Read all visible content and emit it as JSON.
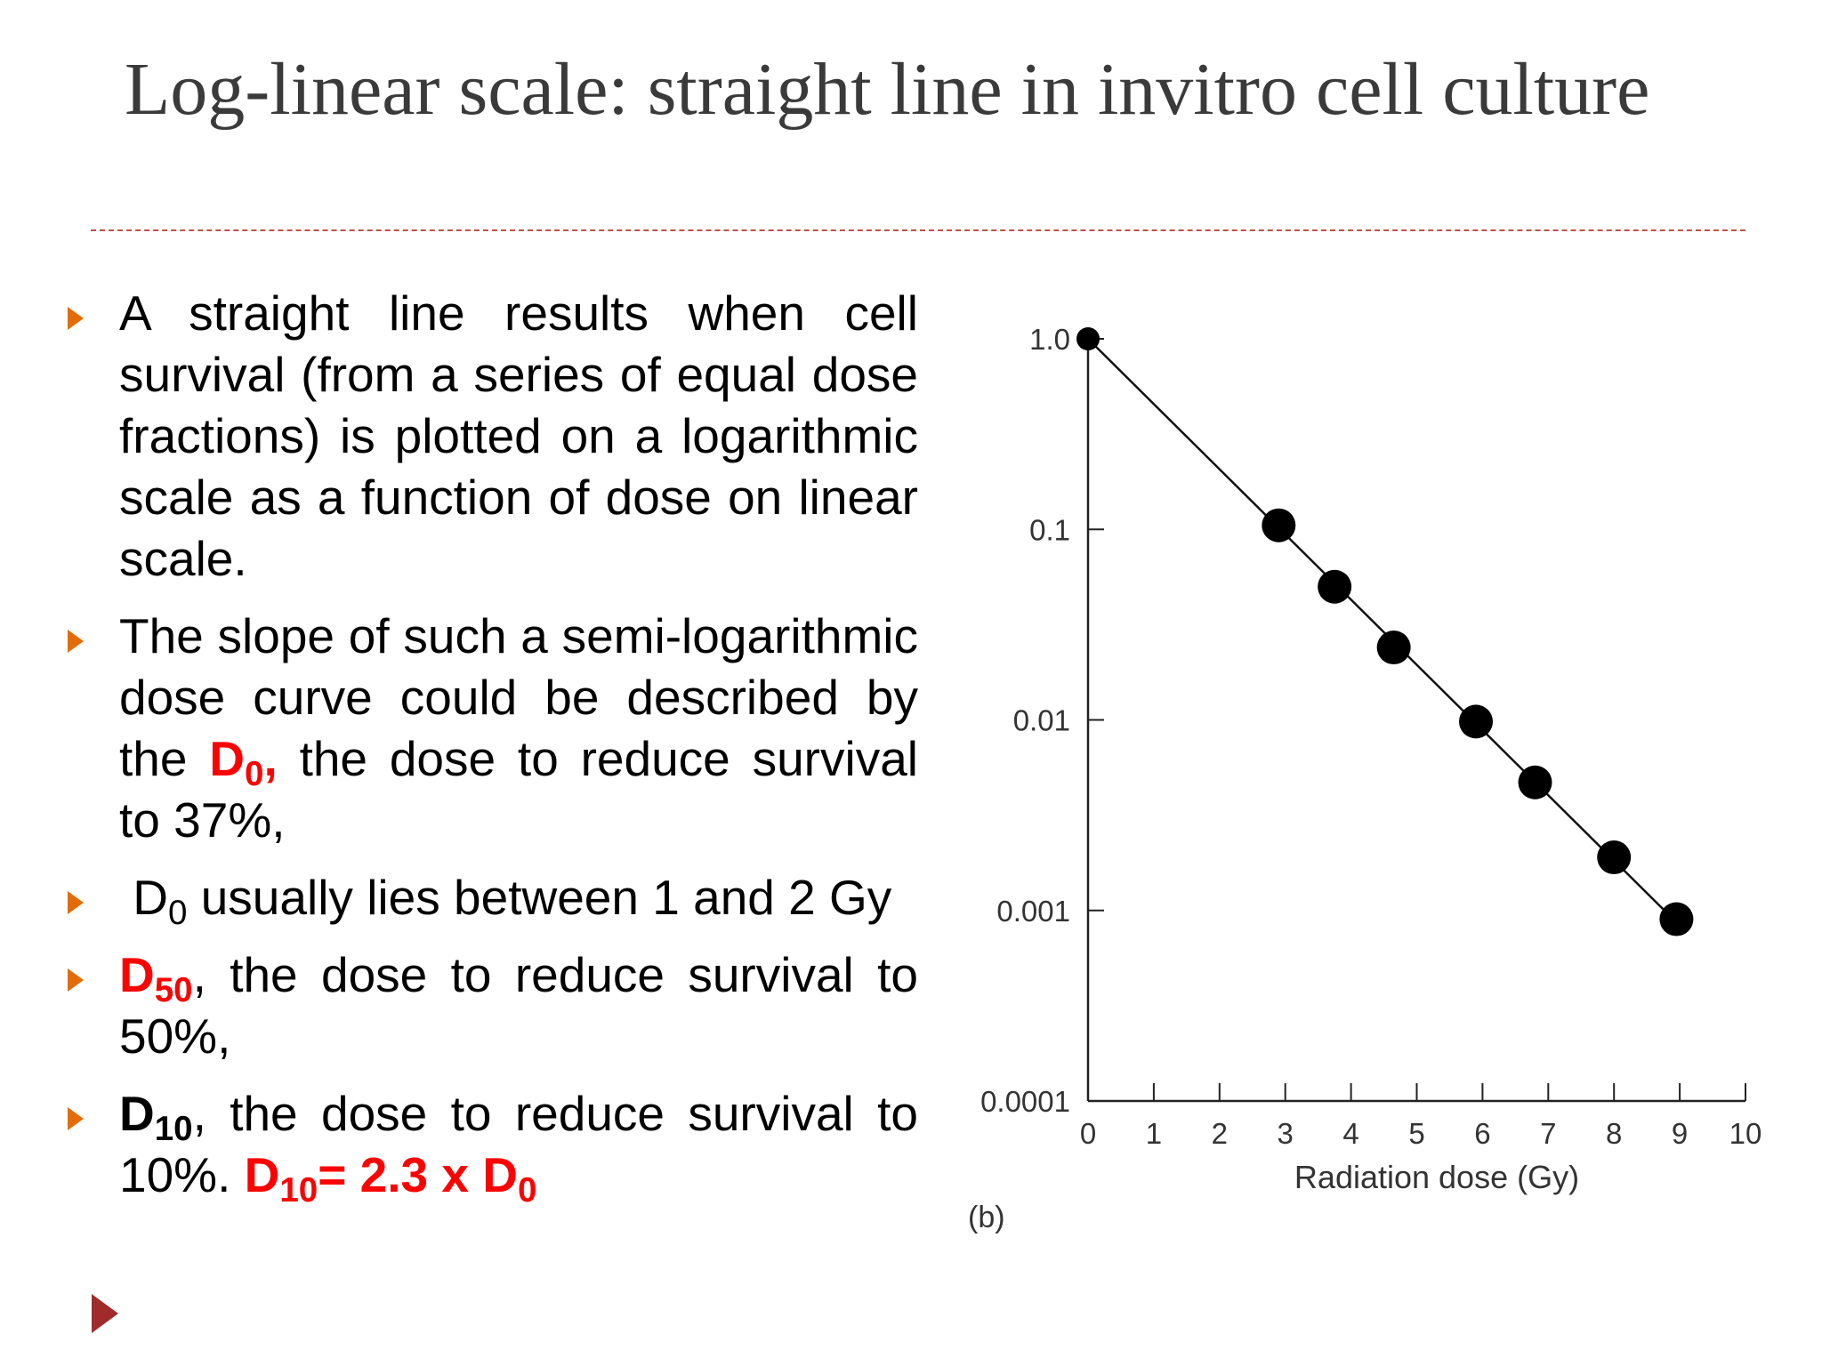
{
  "slide": {
    "title": "Log-linear scale: straight line in invitro cell culture",
    "bullets": {
      "b1": "A straight line results when cell survival (from a series of equal dose fractions) is plotted on a logarithmic scale as a function of dose on linear scale.",
      "b2_text": "The slope of such a semi-logarithmic dose curve could be described by the",
      "b2_d": "D",
      "b2_sub": "0",
      "b2_comma": ",",
      "b2_rest": "the dose to reduce survival to 37%,",
      "b3_d": "D",
      "b3_sub": "0",
      "b3_rest": "usually lies between 1 and 2 Gy",
      "b4_d": "D",
      "b4_sub": "50",
      "b4_rest": ", the dose to reduce survival to 50%,",
      "b5_d": "D",
      "b5_sub": "10",
      "b5_rest": ", the dose to reduce survival to 10%.",
      "b5_eq_d": "D",
      "b5_eq_sub": "10",
      "b5_eq_mid": "= 2.3 x D",
      "b5_eq_sub2": "0"
    },
    "colors": {
      "accent": "#ff0000",
      "bullet_marker": "#e36c09",
      "rule": "#c0504d",
      "nav_arrow": "#a02b2b"
    }
  },
  "chart_data": {
    "type": "scatter",
    "xlabel": "Radiation dose (Gy)",
    "ylabel": "",
    "panel_label": "(b)",
    "y_scale": "log",
    "xlim": [
      0,
      10
    ],
    "ylim": [
      0.0001,
      1.0
    ],
    "x_ticks": [
      "0",
      "1",
      "2",
      "3",
      "4",
      "5",
      "6",
      "7",
      "8",
      "9",
      "10"
    ],
    "y_ticks": [
      {
        "value": 1.0,
        "label": "1.0"
      },
      {
        "value": 0.1,
        "label": "0.1"
      },
      {
        "value": 0.01,
        "label": "0.01"
      },
      {
        "value": 0.001,
        "label": "0.001"
      },
      {
        "value": 0.0001,
        "label": "0.0001"
      }
    ],
    "points": [
      {
        "x": 0,
        "y": 1.0,
        "size": "small"
      },
      {
        "x": 2.9,
        "y": 0.105
      },
      {
        "x": 3.75,
        "y": 0.05
      },
      {
        "x": 4.65,
        "y": 0.024
      },
      {
        "x": 5.9,
        "y": 0.0098
      },
      {
        "x": 6.8,
        "y": 0.0047
      },
      {
        "x": 8.0,
        "y": 0.0019
      },
      {
        "x": 8.95,
        "y": 0.0009
      }
    ],
    "fit_line": {
      "x": [
        0,
        9.05
      ],
      "y": [
        1.0,
        0.0008
      ]
    },
    "grid": false,
    "legend": "none"
  }
}
